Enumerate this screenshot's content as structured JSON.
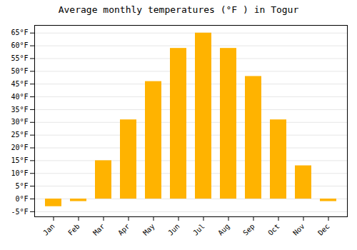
{
  "chart_data": {
    "type": "bar",
    "title": "Average monthly temperatures (°F ) in Togur",
    "categories": [
      "Jan",
      "Feb",
      "Mar",
      "Apr",
      "May",
      "Jun",
      "Jul",
      "Aug",
      "Sep",
      "Oct",
      "Nov",
      "Dec"
    ],
    "values": [
      -3,
      -1,
      15,
      31,
      46,
      59,
      65,
      59,
      48,
      31,
      13,
      -1
    ],
    "color": "#FFB300",
    "ylim": [
      -7,
      68
    ],
    "yticks": [
      {
        "value": -5,
        "label": "-5°F"
      },
      {
        "value": 0,
        "label": "0°F"
      },
      {
        "value": 5,
        "label": "5°F"
      },
      {
        "value": 10,
        "label": "10°F"
      },
      {
        "value": 15,
        "label": "15°F"
      },
      {
        "value": 20,
        "label": "20°F"
      },
      {
        "value": 25,
        "label": "25°F"
      },
      {
        "value": 30,
        "label": "30°F"
      },
      {
        "value": 35,
        "label": "35°F"
      },
      {
        "value": 40,
        "label": "40°F"
      },
      {
        "value": 45,
        "label": "45°F"
      },
      {
        "value": 50,
        "label": "50°F"
      },
      {
        "value": 55,
        "label": "55°F"
      },
      {
        "value": 60,
        "label": "60°F"
      },
      {
        "value": 65,
        "label": "65°F"
      }
    ],
    "grid": true
  }
}
